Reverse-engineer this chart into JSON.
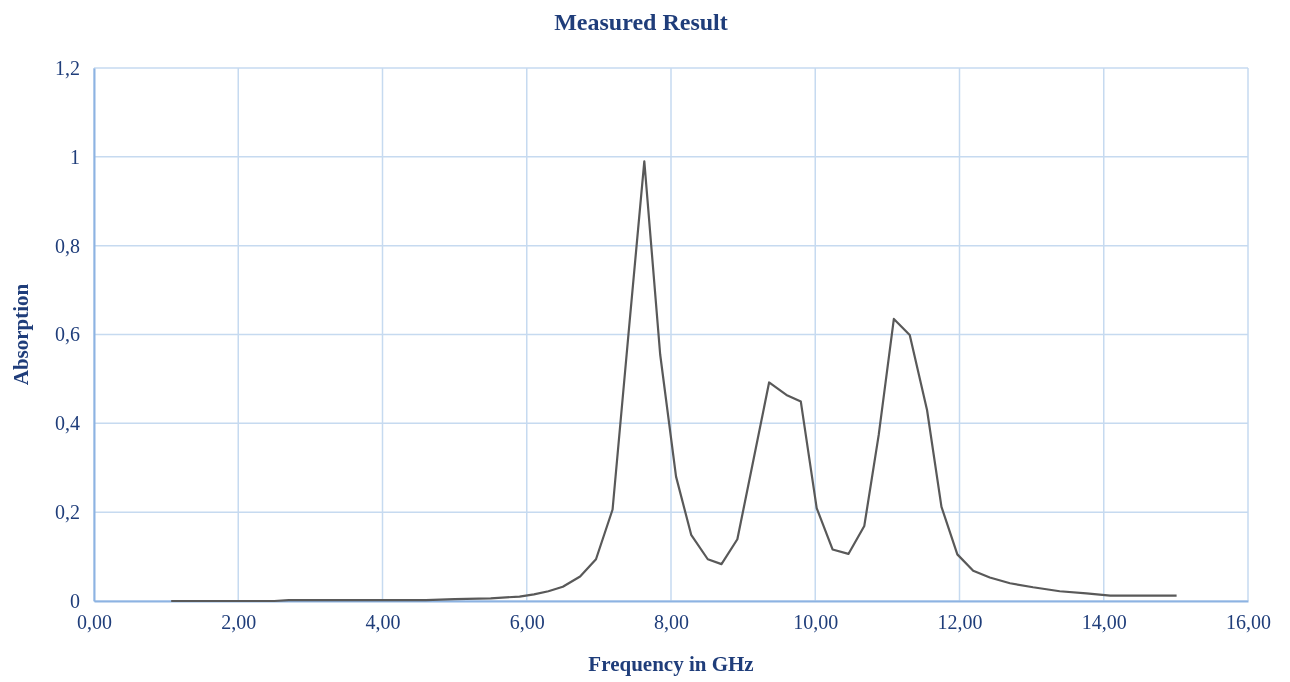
{
  "chart_data": {
    "type": "line",
    "title": "Measured Result",
    "xlabel": "Frequency in GHz",
    "ylabel": "Absorption",
    "x": [
      1.07,
      1.5,
      2.0,
      2.5,
      2.7,
      3.0,
      3.5,
      4.0,
      4.6,
      5.0,
      5.5,
      5.9,
      6.1,
      6.3,
      6.5,
      6.74,
      6.96,
      7.19,
      7.41,
      7.63,
      7.85,
      8.07,
      8.28,
      8.51,
      8.7,
      8.92,
      9.14,
      9.36,
      9.6,
      9.8,
      10.02,
      10.24,
      10.46,
      10.68,
      10.88,
      11.09,
      11.31,
      11.55,
      11.75,
      11.97,
      12.19,
      12.42,
      12.7,
      13.02,
      13.39,
      13.76,
      14.09,
      14.5,
      15.01
    ],
    "series": [
      {
        "color": "#595959",
        "values": [
          0,
          0,
          0,
          0,
          0.002,
          0.002,
          0.002,
          0.002,
          0.002,
          0.004,
          0.006,
          0.01,
          0.015,
          0.022,
          0.032,
          0.055,
          0.094,
          0.206,
          0.6,
          0.99,
          0.555,
          0.28,
          0.149,
          0.094,
          0.083,
          0.139,
          0.315,
          0.492,
          0.464,
          0.449,
          0.209,
          0.116,
          0.106,
          0.169,
          0.374,
          0.635,
          0.599,
          0.43,
          0.212,
          0.105,
          0.068,
          0.053,
          0.04,
          0.031,
          0.022,
          0.017,
          0.012,
          0.012,
          0.012
        ]
      }
    ],
    "xlim": [
      0,
      16
    ],
    "xticks": [
      {
        "value": 0,
        "label": "0,00"
      },
      {
        "value": 2,
        "label": "2,00"
      },
      {
        "value": 4,
        "label": "4,00"
      },
      {
        "value": 6,
        "label": "6,00"
      },
      {
        "value": 8,
        "label": "8,00"
      },
      {
        "value": 10,
        "label": "10,00"
      },
      {
        "value": 12,
        "label": "12,00"
      },
      {
        "value": 14,
        "label": "14,00"
      },
      {
        "value": 16,
        "label": "16,00"
      }
    ],
    "ylim": [
      0,
      1.2
    ],
    "yticks": [
      0,
      {
        "value": 0.2,
        "label": "0,2"
      },
      {
        "value": 0.4,
        "label": "0,4"
      },
      {
        "value": 0.6,
        "label": "0,6"
      },
      {
        "value": 0.8,
        "label": "0,8"
      },
      1,
      {
        "value": 1.2,
        "label": "1,2"
      }
    ],
    "grid": true,
    "marker": "none",
    "line_style": "solid"
  }
}
